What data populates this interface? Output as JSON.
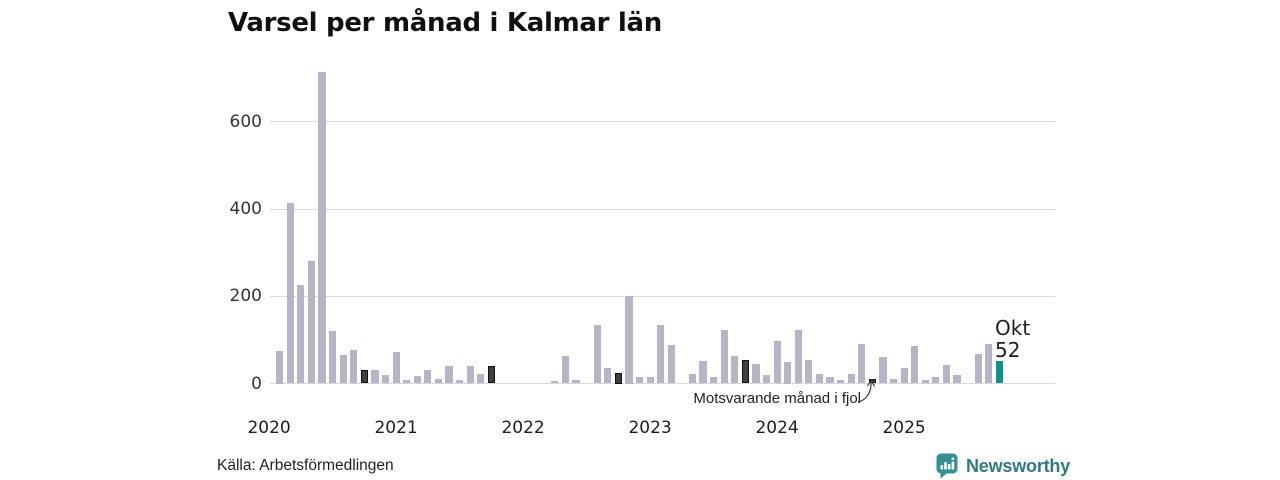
{
  "title": "Varsel per månad i Kalmar län",
  "source": "Källa: Arbetsförmedlingen",
  "annotation": {
    "text": "Motsvarande månad i fjol"
  },
  "current_label": {
    "month": "Okt",
    "value": "52"
  },
  "branding": {
    "name": "Newsworthy",
    "icon": "bar-chart-bubble",
    "icon_color": "#349191",
    "text_color": "#2e7b80"
  },
  "colors": {
    "bar_normal": "#b9b4c5",
    "bar_last_year": "#3f3f3f",
    "bar_current": "#0d9488",
    "gridline": "#d9d9dd",
    "text": "#1f1f1f"
  },
  "chart_data": {
    "type": "bar",
    "title": "Varsel per månad i Kalmar län",
    "xlabel": "",
    "ylabel": "",
    "y_ticks": [
      0,
      200,
      400,
      600
    ],
    "ylim": [
      0,
      730
    ],
    "x_tick_labels": [
      "2020",
      "2021",
      "2022",
      "2023",
      "2024",
      "2025"
    ],
    "grid": "horizontal",
    "legend": "none",
    "kinds": {
      "normal": "month",
      "last_year": "Motsvarande månad i fjol",
      "current": "Okt 2025 = 52"
    },
    "points": [
      {
        "month": "2020-01",
        "value": 0,
        "kind": "normal"
      },
      {
        "month": "2020-02",
        "value": 75,
        "kind": "normal"
      },
      {
        "month": "2020-03",
        "value": 414,
        "kind": "normal"
      },
      {
        "month": "2020-04",
        "value": 226,
        "kind": "normal"
      },
      {
        "month": "2020-05",
        "value": 281,
        "kind": "normal"
      },
      {
        "month": "2020-06",
        "value": 715,
        "kind": "normal"
      },
      {
        "month": "2020-07",
        "value": 121,
        "kind": "normal"
      },
      {
        "month": "2020-08",
        "value": 66,
        "kind": "normal"
      },
      {
        "month": "2020-09",
        "value": 77,
        "kind": "normal"
      },
      {
        "month": "2020-10",
        "value": 30,
        "kind": "last_year"
      },
      {
        "month": "2020-11",
        "value": 30,
        "kind": "normal"
      },
      {
        "month": "2020-12",
        "value": 19,
        "kind": "normal"
      },
      {
        "month": "2021-01",
        "value": 73,
        "kind": "normal"
      },
      {
        "month": "2021-02",
        "value": 8,
        "kind": "normal"
      },
      {
        "month": "2021-03",
        "value": 18,
        "kind": "normal"
      },
      {
        "month": "2021-04",
        "value": 31,
        "kind": "normal"
      },
      {
        "month": "2021-05",
        "value": 11,
        "kind": "normal"
      },
      {
        "month": "2021-06",
        "value": 40,
        "kind": "normal"
      },
      {
        "month": "2021-07",
        "value": 7,
        "kind": "normal"
      },
      {
        "month": "2021-08",
        "value": 40,
        "kind": "normal"
      },
      {
        "month": "2021-09",
        "value": 21,
        "kind": "normal"
      },
      {
        "month": "2021-10",
        "value": 41,
        "kind": "last_year"
      },
      {
        "month": "2021-11",
        "value": 0,
        "kind": "normal"
      },
      {
        "month": "2021-12",
        "value": 0,
        "kind": "normal"
      },
      {
        "month": "2022-01",
        "value": 0,
        "kind": "normal"
      },
      {
        "month": "2022-02",
        "value": 0,
        "kind": "normal"
      },
      {
        "month": "2022-03",
        "value": 0,
        "kind": "normal"
      },
      {
        "month": "2022-04",
        "value": 5,
        "kind": "normal"
      },
      {
        "month": "2022-05",
        "value": 63,
        "kind": "normal"
      },
      {
        "month": "2022-06",
        "value": 8,
        "kind": "normal"
      },
      {
        "month": "2022-07",
        "value": 0,
        "kind": "normal"
      },
      {
        "month": "2022-08",
        "value": 135,
        "kind": "normal"
      },
      {
        "month": "2022-09",
        "value": 35,
        "kind": "normal"
      },
      {
        "month": "2022-10",
        "value": 25,
        "kind": "last_year"
      },
      {
        "month": "2022-11",
        "value": 200,
        "kind": "normal"
      },
      {
        "month": "2022-12",
        "value": 14,
        "kind": "normal"
      },
      {
        "month": "2023-01",
        "value": 15,
        "kind": "normal"
      },
      {
        "month": "2023-02",
        "value": 134,
        "kind": "normal"
      },
      {
        "month": "2023-03",
        "value": 88,
        "kind": "normal"
      },
      {
        "month": "2023-04",
        "value": 0,
        "kind": "normal"
      },
      {
        "month": "2023-05",
        "value": 22,
        "kind": "normal"
      },
      {
        "month": "2023-06",
        "value": 52,
        "kind": "normal"
      },
      {
        "month": "2023-07",
        "value": 15,
        "kind": "normal"
      },
      {
        "month": "2023-08",
        "value": 122,
        "kind": "normal"
      },
      {
        "month": "2023-09",
        "value": 64,
        "kind": "normal"
      },
      {
        "month": "2023-10",
        "value": 55,
        "kind": "last_year"
      },
      {
        "month": "2023-11",
        "value": 44,
        "kind": "normal"
      },
      {
        "month": "2023-12",
        "value": 20,
        "kind": "normal"
      },
      {
        "month": "2024-01",
        "value": 97,
        "kind": "normal"
      },
      {
        "month": "2024-02",
        "value": 50,
        "kind": "normal"
      },
      {
        "month": "2024-03",
        "value": 123,
        "kind": "normal"
      },
      {
        "month": "2024-04",
        "value": 55,
        "kind": "normal"
      },
      {
        "month": "2024-05",
        "value": 21,
        "kind": "normal"
      },
      {
        "month": "2024-06",
        "value": 16,
        "kind": "normal"
      },
      {
        "month": "2024-07",
        "value": 8,
        "kind": "normal"
      },
      {
        "month": "2024-08",
        "value": 21,
        "kind": "normal"
      },
      {
        "month": "2024-09",
        "value": 91,
        "kind": "normal"
      },
      {
        "month": "2024-10",
        "value": 11,
        "kind": "last_year"
      },
      {
        "month": "2024-11",
        "value": 60,
        "kind": "normal"
      },
      {
        "month": "2024-12",
        "value": 11,
        "kind": "normal"
      },
      {
        "month": "2025-01",
        "value": 35,
        "kind": "normal"
      },
      {
        "month": "2025-02",
        "value": 85,
        "kind": "normal"
      },
      {
        "month": "2025-03",
        "value": 7,
        "kind": "normal"
      },
      {
        "month": "2025-04",
        "value": 14,
        "kind": "normal"
      },
      {
        "month": "2025-05",
        "value": 42,
        "kind": "normal"
      },
      {
        "month": "2025-06",
        "value": 20,
        "kind": "normal"
      },
      {
        "month": "2025-07",
        "value": 0,
        "kind": "normal"
      },
      {
        "month": "2025-08",
        "value": 67,
        "kind": "normal"
      },
      {
        "month": "2025-09",
        "value": 91,
        "kind": "normal"
      },
      {
        "month": "2025-10",
        "value": 52,
        "kind": "current"
      }
    ]
  }
}
